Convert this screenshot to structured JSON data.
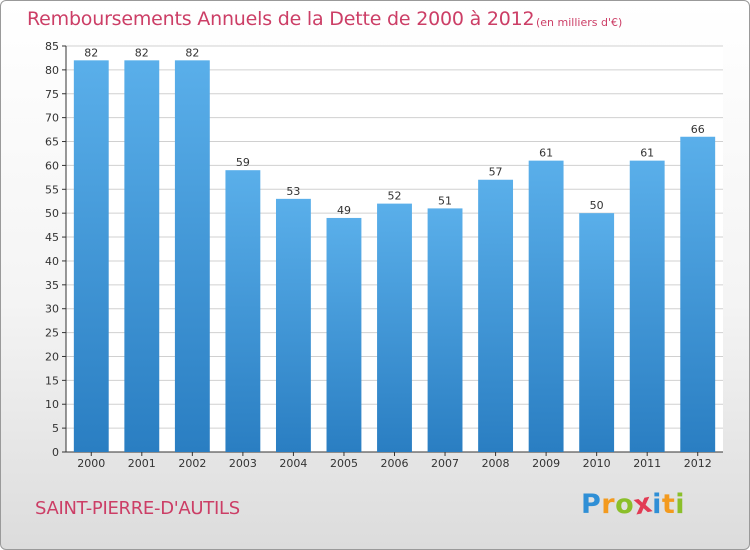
{
  "title": "Remboursements Annuels de la Dette de 2000 à 2012",
  "subtitle": "(en milliers d'€)",
  "commune": "SAINT-PIERRE-D'AUTILS",
  "logo": {
    "text": "Proxiti",
    "letters": [
      {
        "ch": "P",
        "color": "#2f8fd6"
      },
      {
        "ch": "r",
        "color": "#f39a1e"
      },
      {
        "ch": "o",
        "color": "#8bbf2a"
      },
      {
        "ch": "x",
        "color": "#e23b54"
      },
      {
        "ch": "i",
        "color": "#2f8fd6"
      },
      {
        "ch": "t",
        "color": "#f39a1e"
      },
      {
        "ch": "i",
        "color": "#8bbf2a"
      }
    ]
  },
  "colors": {
    "accent": "#cc3e66",
    "bar_top": "#5aafea",
    "bar_bottom": "#2a7ec2",
    "grid": "#d0d0d0",
    "axis": "#333333"
  },
  "chart_data": {
    "type": "bar",
    "title": "Remboursements Annuels de la Dette de 2000 à 2012",
    "subtitle": "(en milliers d'€)",
    "categories": [
      "2000",
      "2001",
      "2002",
      "2003",
      "2004",
      "2005",
      "2006",
      "2007",
      "2008",
      "2009",
      "2010",
      "2011",
      "2012"
    ],
    "values": [
      82,
      82,
      82,
      59,
      53,
      49,
      52,
      51,
      57,
      61,
      50,
      61,
      66
    ],
    "ylim": [
      0,
      85
    ],
    "yticks": [
      0,
      5,
      10,
      15,
      20,
      25,
      30,
      35,
      40,
      45,
      50,
      55,
      60,
      65,
      70,
      75,
      80,
      85
    ],
    "grid": true,
    "data_labels": true
  }
}
